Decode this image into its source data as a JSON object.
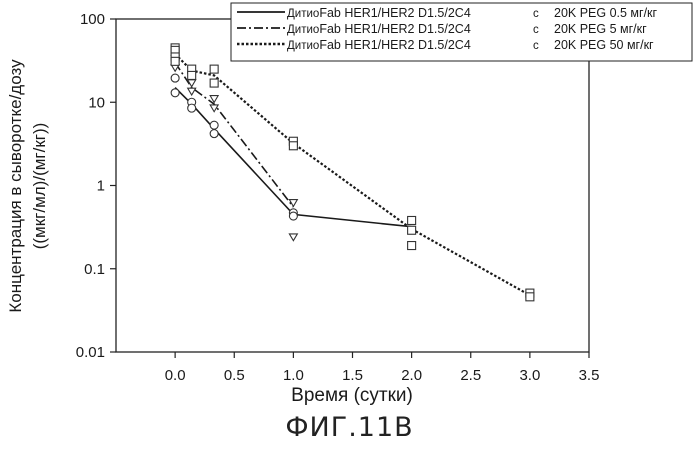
{
  "figure_caption": "ФИГ.11В",
  "chart_data": {
    "type": "scatter",
    "xlabel": "Время (сутки)",
    "ylabel_lines": [
      "Концентрация в сыворотке/дозу",
      "((мкг/мл)/(мг/кг))"
    ],
    "xlim": [
      -0.5,
      3.5
    ],
    "ylim": [
      0.01,
      100
    ],
    "y_scale": "log",
    "grid": false,
    "legend_position": "top-right",
    "x_ticks": [
      "0.0",
      "0.5",
      "1.0",
      "1.5",
      "2.0",
      "2.5",
      "3.0",
      "3.5"
    ],
    "x_tick_values": [
      0,
      0.5,
      1.0,
      1.5,
      2.0,
      2.5,
      3.0,
      3.5
    ],
    "y_ticks": [
      "100",
      "10",
      "1",
      "0.1",
      "0.01"
    ],
    "y_tick_values": [
      100,
      10,
      1,
      0.1,
      0.01
    ],
    "series": [
      {
        "legend_parts": [
          "Дитио",
          "Fab HER1/HER2 D1.5/2C4",
          "с",
          "20K PEG 0.5 мг/кг"
        ],
        "line_style": "solid",
        "marker": "circle",
        "mean": [
          [
            0.0,
            15
          ],
          [
            0.14,
            9.5
          ],
          [
            0.33,
            4.8
          ],
          [
            1.0,
            0.45
          ],
          [
            2.0,
            0.32
          ]
        ],
        "points": [
          [
            0.0,
            19.5
          ],
          [
            0.0,
            13
          ],
          [
            0.14,
            10
          ],
          [
            0.14,
            8.5
          ],
          [
            0.33,
            5.3
          ],
          [
            0.33,
            4.2
          ],
          [
            1.0,
            0.47
          ],
          [
            1.0,
            0.43
          ]
        ]
      },
      {
        "legend_parts": [
          "Дитио",
          "Fab HER1/HER2 D1.5/2C4",
          "с",
          "20K PEG 5 мг/кг"
        ],
        "line_style": "dash-dot",
        "marker": "triangle-down",
        "mean": [
          [
            0.0,
            30
          ],
          [
            0.14,
            15
          ],
          [
            0.33,
            9.5
          ],
          [
            1.0,
            0.55
          ]
        ],
        "points": [
          [
            0.0,
            33
          ],
          [
            0.0,
            26
          ],
          [
            0.14,
            17
          ],
          [
            0.14,
            13.5
          ],
          [
            0.33,
            11
          ],
          [
            0.33,
            8.5
          ],
          [
            1.0,
            0.62
          ],
          [
            1.0,
            0.24
          ]
        ]
      },
      {
        "legend_parts": [
          "Дитио",
          "Fab HER1/HER2 D1.5/2C4",
          "с",
          "20K PEG 50 мг/кг"
        ],
        "line_style": "dotted",
        "marker": "square",
        "mean": [
          [
            0.0,
            38
          ],
          [
            0.14,
            24
          ],
          [
            0.33,
            21
          ],
          [
            1.0,
            3.2
          ],
          [
            2.0,
            0.3
          ],
          [
            3.0,
            0.048
          ]
        ],
        "points": [
          [
            0.0,
            45
          ],
          [
            0.0,
            42
          ],
          [
            0.0,
            35
          ],
          [
            0.0,
            31
          ],
          [
            0.14,
            25
          ],
          [
            0.14,
            21
          ],
          [
            0.33,
            25
          ],
          [
            0.33,
            17
          ],
          [
            1.0,
            3.4
          ],
          [
            1.0,
            3.0
          ],
          [
            2.0,
            0.38
          ],
          [
            2.0,
            0.29
          ],
          [
            2.0,
            0.19
          ],
          [
            3.0,
            0.051
          ],
          [
            3.0,
            0.046
          ]
        ]
      }
    ]
  }
}
